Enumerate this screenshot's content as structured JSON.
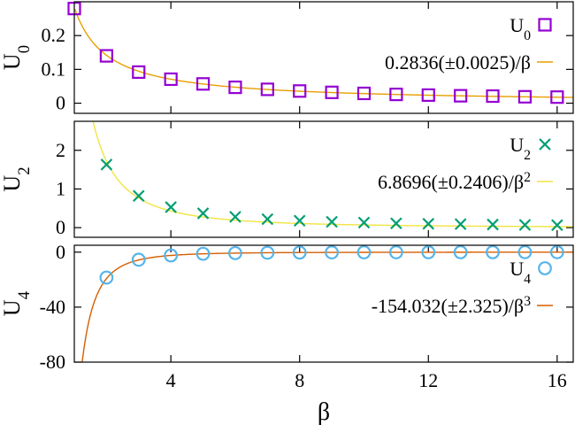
{
  "chart_data": [
    {
      "type": "scatter",
      "ylabel": "U",
      "ylabel_sub": "0",
      "xlim": [
        1,
        16.5
      ],
      "ylim": [
        -0.03,
        0.3
      ],
      "yticks": [
        0.2,
        0.1,
        0
      ],
      "ytick_labels": [
        "0.2",
        "0.1",
        "0"
      ],
      "series": [
        {
          "name": "U",
          "name_sub": "0",
          "marker": "square",
          "color": "#9400D3",
          "x": [
            1,
            2,
            3,
            4,
            5,
            6,
            7,
            8,
            9,
            10,
            11,
            12,
            13,
            14,
            15,
            16
          ],
          "values": [
            0.28,
            0.14,
            0.092,
            0.071,
            0.057,
            0.047,
            0.041,
            0.036,
            0.032,
            0.029,
            0.026,
            0.024,
            0.022,
            0.021,
            0.019,
            0.018
          ]
        },
        {
          "name": "0.2836(±0.0025)/β",
          "line": true,
          "color": "#E69F00",
          "fit_coef": 0.2836,
          "fit_power": 1
        }
      ],
      "legend": "right"
    },
    {
      "type": "scatter",
      "ylabel": "U",
      "ylabel_sub": "2",
      "xlim": [
        1,
        16.5
      ],
      "ylim": [
        -0.25,
        2.75
      ],
      "yticks": [
        2,
        1,
        0
      ],
      "ytick_labels": [
        "2",
        "1",
        "0"
      ],
      "series": [
        {
          "name": "U",
          "name_sub": "2",
          "marker": "x",
          "color": "#009E73",
          "x": [
            2,
            3,
            4,
            5,
            6,
            7,
            8,
            9,
            10,
            11,
            12,
            13,
            14,
            15,
            16
          ],
          "values": [
            1.63,
            0.82,
            0.53,
            0.37,
            0.28,
            0.22,
            0.18,
            0.15,
            0.13,
            0.11,
            0.1,
            0.09,
            0.08,
            0.07,
            0.065
          ]
        },
        {
          "name": "6.8696(±0.2406)/β",
          "name_sup": "2",
          "line": true,
          "color": "#F0E442",
          "fit_coef": 6.8696,
          "fit_power": 2
        }
      ],
      "legend": "right"
    },
    {
      "type": "scatter",
      "ylabel": "U",
      "ylabel_sub": "4",
      "xlabel": "β",
      "xlim": [
        1,
        16.5
      ],
      "ylim": [
        -80,
        5
      ],
      "yticks": [
        0,
        -40,
        -80
      ],
      "ytick_labels": [
        "0",
        "-40",
        "-80"
      ],
      "xticks": [
        4,
        8,
        12,
        16
      ],
      "xtick_labels": [
        "4",
        "8",
        "12",
        "16"
      ],
      "series": [
        {
          "name": "U",
          "name_sub": "4",
          "marker": "circle",
          "color": "#56B4E9",
          "x": [
            2,
            3,
            4,
            5,
            6,
            7,
            8,
            9,
            10,
            11,
            12,
            13,
            14,
            15,
            16
          ],
          "values": [
            -18.5,
            -5.5,
            -2.4,
            -1.2,
            -0.7,
            -0.45,
            -0.3,
            -0.2,
            -0.15,
            -0.12,
            -0.09,
            -0.07,
            -0.056,
            -0.045,
            -0.038
          ]
        },
        {
          "name": "-154.032(±2.325)/β",
          "name_sup": "3",
          "line": true,
          "color": "#D55E00",
          "fit_coef": -154.032,
          "fit_power": 3
        }
      ],
      "legend": "right"
    }
  ]
}
